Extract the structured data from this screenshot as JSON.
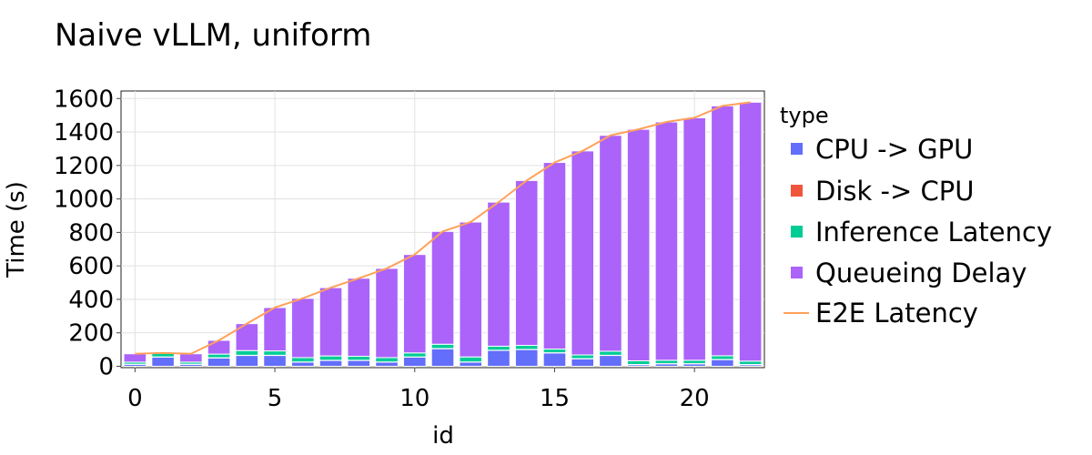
{
  "chart_data": {
    "type": "bar",
    "stacked": true,
    "title": "Naive vLLM, uniform",
    "xlabel": "id",
    "ylabel": "Time (s)",
    "xlim": [
      -0.5,
      22.5
    ],
    "ylim": [
      -8,
      1645
    ],
    "x_ticks": [
      0,
      5,
      10,
      15,
      20
    ],
    "y_ticks": [
      0,
      200,
      400,
      600,
      800,
      1000,
      1200,
      1400,
      1600
    ],
    "grid": true,
    "legend_title": "type",
    "legend_position": "right",
    "x": [
      0,
      1,
      2,
      3,
      4,
      5,
      6,
      7,
      8,
      9,
      10,
      11,
      12,
      13,
      14,
      15,
      16,
      17,
      18,
      19,
      20,
      21,
      22
    ],
    "series": [
      {
        "name": "CPU -> GPU",
        "color": "#636efa",
        "values": [
          12,
          55,
          12,
          50,
          65,
          65,
          25,
          35,
          35,
          25,
          55,
          105,
          25,
          95,
          100,
          80,
          45,
          65,
          10,
          15,
          15,
          40,
          10
        ]
      },
      {
        "name": "Disk -> CPU",
        "color": "#ef553b",
        "values": [
          1,
          1,
          1,
          1,
          1,
          1,
          1,
          1,
          1,
          1,
          1,
          1,
          1,
          1,
          1,
          1,
          1,
          1,
          1,
          1,
          1,
          1,
          1
        ]
      },
      {
        "name": "Inference Latency",
        "color": "#00cc96",
        "values": [
          12,
          22,
          12,
          22,
          28,
          26,
          26,
          26,
          24,
          26,
          24,
          26,
          30,
          24,
          24,
          22,
          22,
          24,
          22,
          20,
          20,
          22,
          20
        ]
      },
      {
        "name": "Queueing Delay",
        "color": "#ab63fa",
        "values": [
          50,
          2,
          50,
          82,
          161,
          259,
          354,
          408,
          466,
          533,
          588,
          674,
          806,
          861,
          985,
          1115,
          1219,
          1290,
          1383,
          1424,
          1449,
          1493,
          1547
        ]
      }
    ],
    "line": {
      "name": "E2E Latency",
      "color": "#ffa15a",
      "values": [
        75,
        80,
        75,
        155,
        255,
        351,
        406,
        470,
        526,
        585,
        668,
        806,
        862,
        981,
        1110,
        1218,
        1287,
        1380,
        1416,
        1460,
        1485,
        1556,
        1578
      ]
    }
  }
}
